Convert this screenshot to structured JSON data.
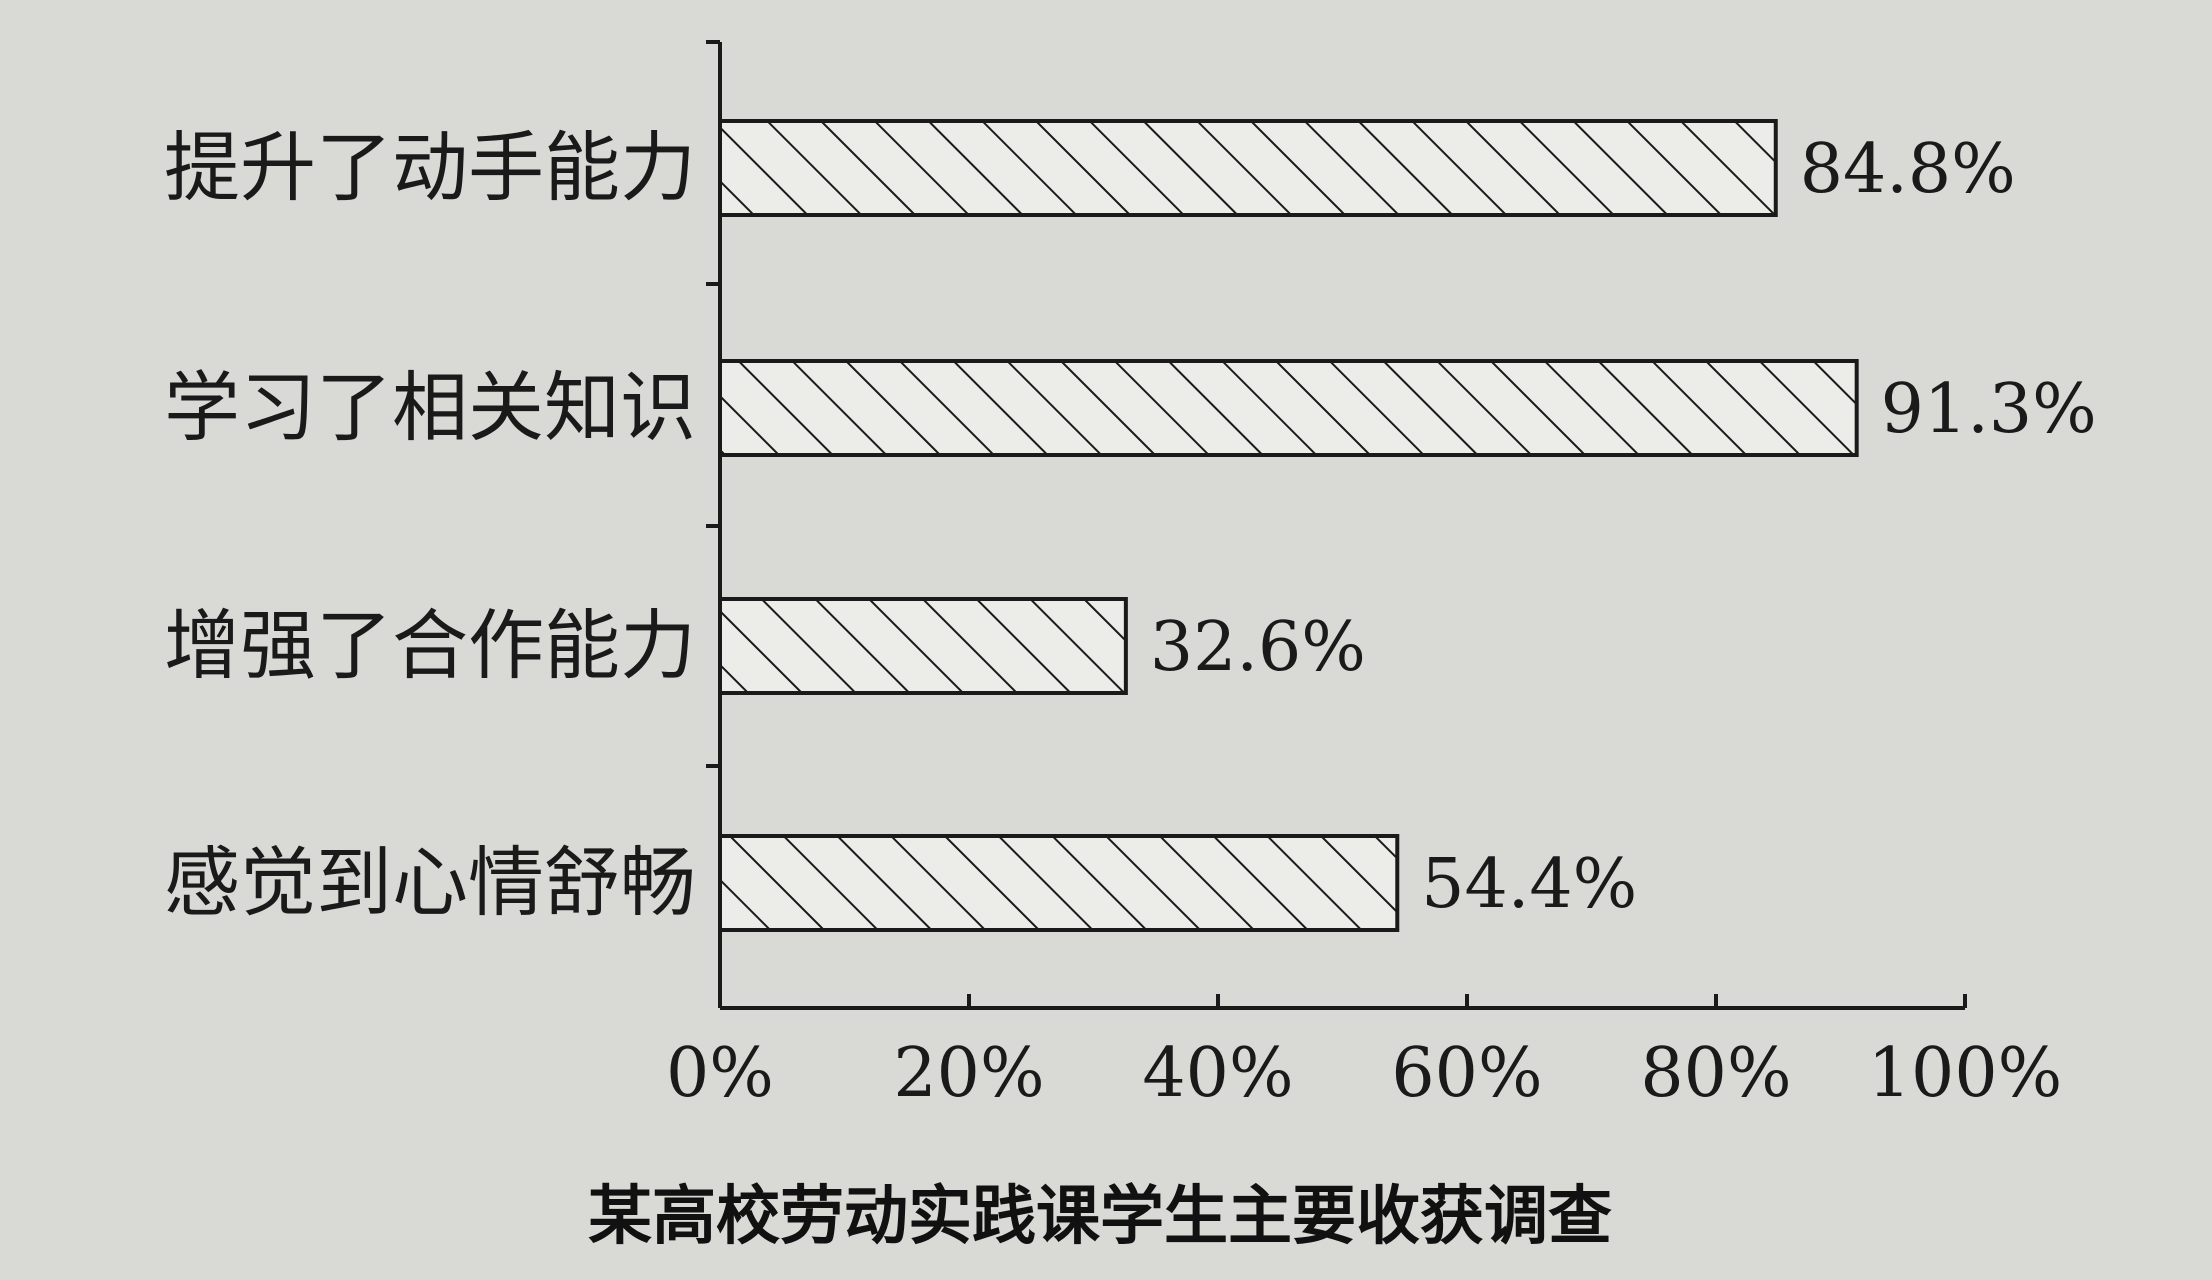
{
  "chart_data": {
    "type": "bar",
    "orientation": "horizontal",
    "title": "某高校劳动实践课学生主要收获调查",
    "categories": [
      "提升了动手能力",
      "学习了相关知识",
      "增强了合作能力",
      "感觉到心情舒畅"
    ],
    "values": [
      84.8,
      91.3,
      32.6,
      54.4
    ],
    "value_labels": [
      "84.8%",
      "91.3%",
      "32.6%",
      "54.4%"
    ],
    "xlim": [
      0,
      100
    ],
    "x_ticks": [
      "0%",
      "20%",
      "40%",
      "60%",
      "80%",
      "100%"
    ],
    "grid": false,
    "bar_fill": "hatched",
    "colors": {
      "background": "#d9d9d6",
      "bar_stroke": "#1a1a1a",
      "hatch": "#1a1a1a",
      "bar_fill": "#ecece9"
    }
  }
}
